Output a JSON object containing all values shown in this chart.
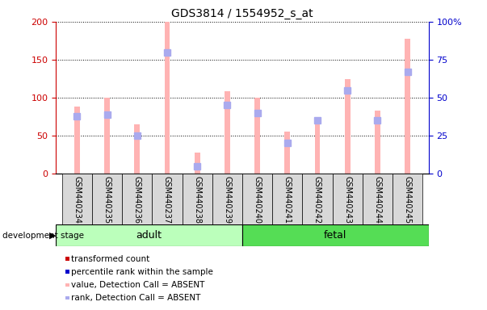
{
  "title": "GDS3814 / 1554952_s_at",
  "samples": [
    "GSM440234",
    "GSM440235",
    "GSM440236",
    "GSM440237",
    "GSM440238",
    "GSM440239",
    "GSM440240",
    "GSM440241",
    "GSM440242",
    "GSM440243",
    "GSM440244",
    "GSM440245"
  ],
  "groups": [
    "adult",
    "adult",
    "adult",
    "adult",
    "adult",
    "adult",
    "fetal",
    "fetal",
    "fetal",
    "fetal",
    "fetal",
    "fetal"
  ],
  "transformed_count": [
    88,
    100,
    65,
    200,
    28,
    108,
    100,
    55,
    73,
    124,
    83,
    178
  ],
  "percentile_rank": [
    38,
    39,
    25,
    80,
    5,
    45,
    40,
    20,
    35,
    55,
    35,
    67
  ],
  "detection_call": [
    "ABSENT",
    "ABSENT",
    "ABSENT",
    "ABSENT",
    "ABSENT",
    "ABSENT",
    "ABSENT",
    "ABSENT",
    "ABSENT",
    "ABSENT",
    "ABSENT",
    "ABSENT"
  ],
  "left_ylim": [
    0,
    200
  ],
  "right_ylim": [
    0,
    100
  ],
  "left_yticks": [
    0,
    50,
    100,
    150,
    200
  ],
  "right_yticks": [
    0,
    25,
    50,
    75,
    100
  ],
  "left_yticklabels": [
    "0",
    "50",
    "100",
    "150",
    "200"
  ],
  "right_yticklabels": [
    "0",
    "25",
    "50",
    "75",
    "100%"
  ],
  "left_ycolor": "#cc0000",
  "right_ycolor": "#0000cc",
  "pink_bar_width": 0.18,
  "blue_marker_size": 6,
  "pink_color": "#ffb3b3",
  "lightblue_color": "#aaaaee",
  "adult_bg": "#bbffbb",
  "fetal_bg": "#55dd55",
  "legend_items": [
    {
      "label": "transformed count",
      "color": "#cc0000"
    },
    {
      "label": "percentile rank within the sample",
      "color": "#0000cc"
    },
    {
      "label": "value, Detection Call = ABSENT",
      "color": "#ffb3b3"
    },
    {
      "label": "rank, Detection Call = ABSENT",
      "color": "#aaaaee"
    }
  ],
  "development_stage_label": "development stage",
  "figsize": [
    6.03,
    3.84
  ],
  "dpi": 100
}
